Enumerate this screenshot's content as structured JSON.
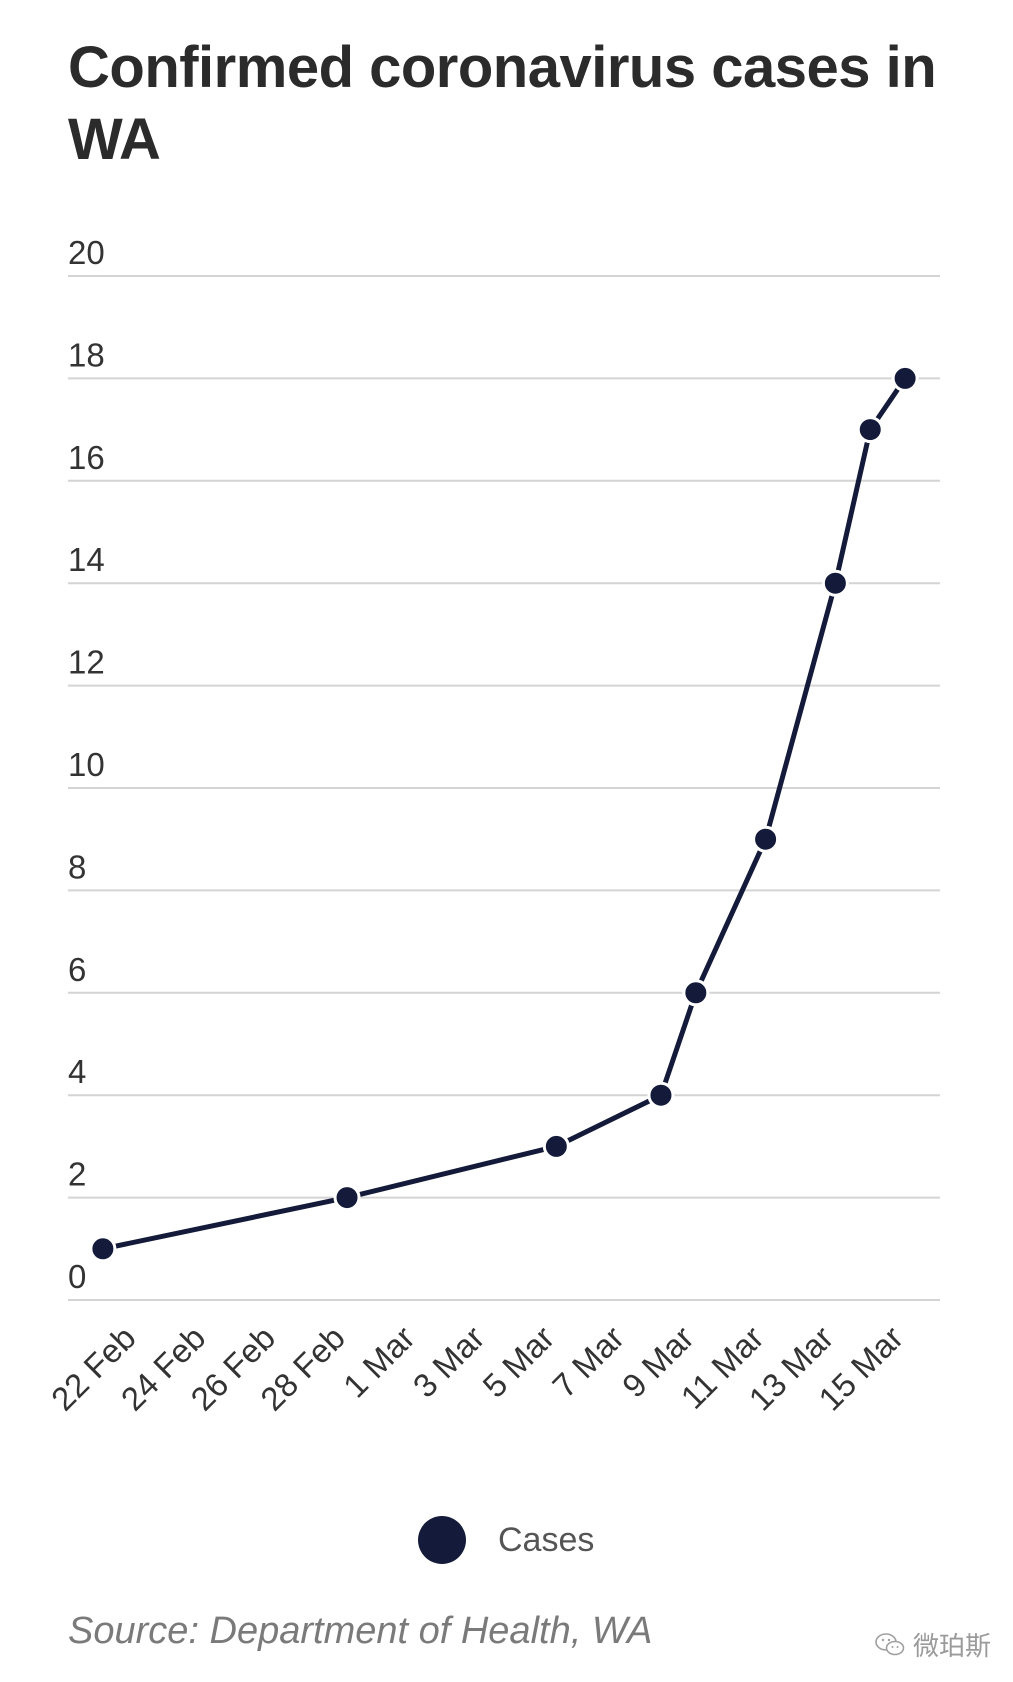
{
  "title": "Confirmed coronavirus cases in WA",
  "source": "Source: Department of Health, WA",
  "watermark": "微珀斯",
  "colors": {
    "series": "#141a3a",
    "grid": "#d4d4d4",
    "text": "#333333"
  },
  "chart_data": {
    "type": "line",
    "title": "Confirmed coronavirus cases in WA",
    "xlabel": "",
    "ylabel": "",
    "x_type": "date",
    "x_range": [
      "2020-02-20",
      "2020-03-16"
    ],
    "ylim": [
      0,
      20
    ],
    "y_ticks": [
      0,
      2,
      4,
      6,
      8,
      10,
      12,
      14,
      16,
      18,
      20
    ],
    "x_ticks": [
      {
        "date": "2020-02-22",
        "label": "22 Feb"
      },
      {
        "date": "2020-02-24",
        "label": "24 Feb"
      },
      {
        "date": "2020-02-26",
        "label": "26 Feb"
      },
      {
        "date": "2020-02-28",
        "label": "28 Feb"
      },
      {
        "date": "2020-03-01",
        "label": "1 Mar"
      },
      {
        "date": "2020-03-03",
        "label": "3 Mar"
      },
      {
        "date": "2020-03-05",
        "label": "5 Mar"
      },
      {
        "date": "2020-03-07",
        "label": "7 Mar"
      },
      {
        "date": "2020-03-09",
        "label": "9 Mar"
      },
      {
        "date": "2020-03-11",
        "label": "11 Mar"
      },
      {
        "date": "2020-03-13",
        "label": "13 Mar"
      },
      {
        "date": "2020-03-15",
        "label": "15 Mar"
      }
    ],
    "grid": true,
    "legend_position": "bottom",
    "series": [
      {
        "name": "Cases",
        "color": "#141a3a",
        "points": [
          {
            "x": "2020-02-21",
            "y": 1
          },
          {
            "x": "2020-02-28",
            "y": 2
          },
          {
            "x": "2020-03-05",
            "y": 3
          },
          {
            "x": "2020-03-08",
            "y": 4
          },
          {
            "x": "2020-03-09",
            "y": 6
          },
          {
            "x": "2020-03-11",
            "y": 9
          },
          {
            "x": "2020-03-13",
            "y": 14
          },
          {
            "x": "2020-03-14",
            "y": 17
          },
          {
            "x": "2020-03-15",
            "y": 18
          }
        ]
      }
    ]
  }
}
